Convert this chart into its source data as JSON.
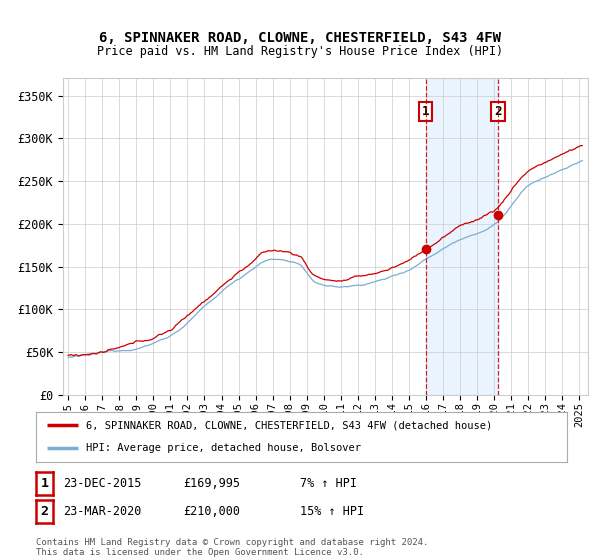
{
  "title": "6, SPINNAKER ROAD, CLOWNE, CHESTERFIELD, S43 4FW",
  "subtitle": "Price paid vs. HM Land Registry's House Price Index (HPI)",
  "ylabel_ticks": [
    0,
    50000,
    100000,
    150000,
    200000,
    250000,
    300000,
    350000
  ],
  "ylabel_labels": [
    "£0",
    "£50K",
    "£100K",
    "£150K",
    "£200K",
    "£250K",
    "£300K",
    "£350K"
  ],
  "xlim_start": 1994.7,
  "xlim_end": 2025.5,
  "ylim": [
    0,
    370000
  ],
  "purchase1_date": 2015.97,
  "purchase1_price": 169995,
  "purchase2_date": 2020.22,
  "purchase2_price": 210000,
  "legend_label_red": "6, SPINNAKER ROAD, CLOWNE, CHESTERFIELD, S43 4FW (detached house)",
  "legend_label_blue": "HPI: Average price, detached house, Bolsover",
  "table_rows": [
    [
      "1",
      "23-DEC-2015",
      "£169,995",
      "7% ↑ HPI"
    ],
    [
      "2",
      "23-MAR-2020",
      "£210,000",
      "15% ↑ HPI"
    ]
  ],
  "footnote": "Contains HM Land Registry data © Crown copyright and database right 2024.\nThis data is licensed under the Open Government Licence v3.0.",
  "red_color": "#cc0000",
  "blue_color": "#7aadd4",
  "shade_color": "#ddeeff",
  "grid_color": "#cccccc",
  "background_color": "#ffffff",
  "hpi_control_years": [
    1995,
    1997,
    1999,
    2001,
    2003,
    2005,
    2007,
    2008.5,
    2009.5,
    2011,
    2013,
    2015,
    2016,
    2018,
    2020,
    2022,
    2024,
    2025.1
  ],
  "hpi_control_vals": [
    47000,
    51000,
    58000,
    75000,
    110000,
    145000,
    170000,
    165000,
    140000,
    135000,
    142000,
    158000,
    172000,
    198000,
    218000,
    265000,
    285000,
    295000
  ]
}
